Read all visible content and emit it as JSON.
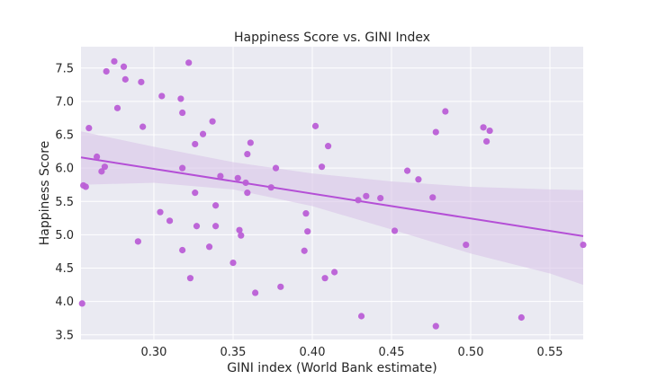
{
  "chart_data": {
    "type": "scatter",
    "title": "Happiness Score vs. GINI Index",
    "xlabel": "GINI index (World Bank estimate)",
    "ylabel": "Happiness Score",
    "xlim": [
      0.254,
      0.571
    ],
    "ylim": [
      3.43,
      7.82
    ],
    "x_ticks": [
      0.3,
      0.35,
      0.4,
      0.45,
      0.5,
      0.55
    ],
    "x_tick_labels": [
      "0.30",
      "0.35",
      "0.40",
      "0.45",
      "0.50",
      "0.55"
    ],
    "y_ticks": [
      3.5,
      4.0,
      4.5,
      5.0,
      5.5,
      6.0,
      6.5,
      7.0,
      7.5
    ],
    "y_tick_labels": [
      "3.5",
      "4.0",
      "4.5",
      "5.0",
      "5.5",
      "6.0",
      "6.5",
      "7.0",
      "7.5"
    ],
    "grid": true,
    "colors": {
      "points": "#bb5fd6",
      "line": "#b44fd6",
      "band": "#d9c4e8",
      "background": "#eaeaf2",
      "grid": "#ffffff"
    },
    "regression": {
      "x": [
        0.254,
        0.571
      ],
      "y": [
        6.16,
        4.98
      ]
    },
    "confidence_band": {
      "x": [
        0.254,
        0.3,
        0.35,
        0.4,
        0.45,
        0.5,
        0.55,
        0.571
      ],
      "upper": [
        6.55,
        6.32,
        6.09,
        5.92,
        5.8,
        5.72,
        5.68,
        5.67
      ],
      "lower": [
        5.75,
        5.78,
        5.68,
        5.43,
        5.08,
        4.72,
        4.42,
        4.25
      ]
    },
    "points": [
      {
        "x": 0.2547,
        "y": 3.97
      },
      {
        "x": 0.2555,
        "y": 5.74
      },
      {
        "x": 0.257,
        "y": 5.72
      },
      {
        "x": 0.259,
        "y": 6.6
      },
      {
        "x": 0.264,
        "y": 6.17
      },
      {
        "x": 0.267,
        "y": 5.95
      },
      {
        "x": 0.269,
        "y": 6.02
      },
      {
        "x": 0.27,
        "y": 7.45
      },
      {
        "x": 0.275,
        "y": 7.6
      },
      {
        "x": 0.277,
        "y": 6.9
      },
      {
        "x": 0.281,
        "y": 7.52
      },
      {
        "x": 0.282,
        "y": 7.33
      },
      {
        "x": 0.29,
        "y": 4.9
      },
      {
        "x": 0.292,
        "y": 7.29
      },
      {
        "x": 0.293,
        "y": 6.62
      },
      {
        "x": 0.304,
        "y": 5.34
      },
      {
        "x": 0.305,
        "y": 7.08
      },
      {
        "x": 0.31,
        "y": 5.21
      },
      {
        "x": 0.317,
        "y": 7.04
      },
      {
        "x": 0.318,
        "y": 6.83
      },
      {
        "x": 0.318,
        "y": 6.0
      },
      {
        "x": 0.318,
        "y": 4.77
      },
      {
        "x": 0.322,
        "y": 7.58
      },
      {
        "x": 0.323,
        "y": 4.35
      },
      {
        "x": 0.326,
        "y": 6.36
      },
      {
        "x": 0.326,
        "y": 5.63
      },
      {
        "x": 0.327,
        "y": 5.13
      },
      {
        "x": 0.331,
        "y": 6.51
      },
      {
        "x": 0.335,
        "y": 4.82
      },
      {
        "x": 0.337,
        "y": 6.7
      },
      {
        "x": 0.339,
        "y": 5.44
      },
      {
        "x": 0.339,
        "y": 5.13
      },
      {
        "x": 0.342,
        "y": 5.88
      },
      {
        "x": 0.35,
        "y": 4.58
      },
      {
        "x": 0.353,
        "y": 5.85
      },
      {
        "x": 0.354,
        "y": 5.07
      },
      {
        "x": 0.355,
        "y": 4.99
      },
      {
        "x": 0.358,
        "y": 5.78
      },
      {
        "x": 0.359,
        "y": 6.21
      },
      {
        "x": 0.359,
        "y": 5.63
      },
      {
        "x": 0.361,
        "y": 6.38
      },
      {
        "x": 0.364,
        "y": 4.13
      },
      {
        "x": 0.374,
        "y": 5.71
      },
      {
        "x": 0.377,
        "y": 6.0
      },
      {
        "x": 0.38,
        "y": 4.22
      },
      {
        "x": 0.395,
        "y": 4.76
      },
      {
        "x": 0.396,
        "y": 5.32
      },
      {
        "x": 0.397,
        "y": 5.05
      },
      {
        "x": 0.402,
        "y": 6.63
      },
      {
        "x": 0.406,
        "y": 6.02
      },
      {
        "x": 0.408,
        "y": 4.35
      },
      {
        "x": 0.41,
        "y": 6.33
      },
      {
        "x": 0.414,
        "y": 4.44
      },
      {
        "x": 0.429,
        "y": 5.52
      },
      {
        "x": 0.431,
        "y": 3.78
      },
      {
        "x": 0.434,
        "y": 5.58
      },
      {
        "x": 0.443,
        "y": 5.55
      },
      {
        "x": 0.452,
        "y": 5.06
      },
      {
        "x": 0.46,
        "y": 5.96
      },
      {
        "x": 0.467,
        "y": 5.83
      },
      {
        "x": 0.476,
        "y": 5.56
      },
      {
        "x": 0.478,
        "y": 6.54
      },
      {
        "x": 0.478,
        "y": 3.63
      },
      {
        "x": 0.484,
        "y": 6.85
      },
      {
        "x": 0.497,
        "y": 4.85
      },
      {
        "x": 0.508,
        "y": 6.61
      },
      {
        "x": 0.51,
        "y": 6.4
      },
      {
        "x": 0.512,
        "y": 6.56
      },
      {
        "x": 0.532,
        "y": 3.76
      },
      {
        "x": 0.571,
        "y": 4.85
      }
    ]
  }
}
